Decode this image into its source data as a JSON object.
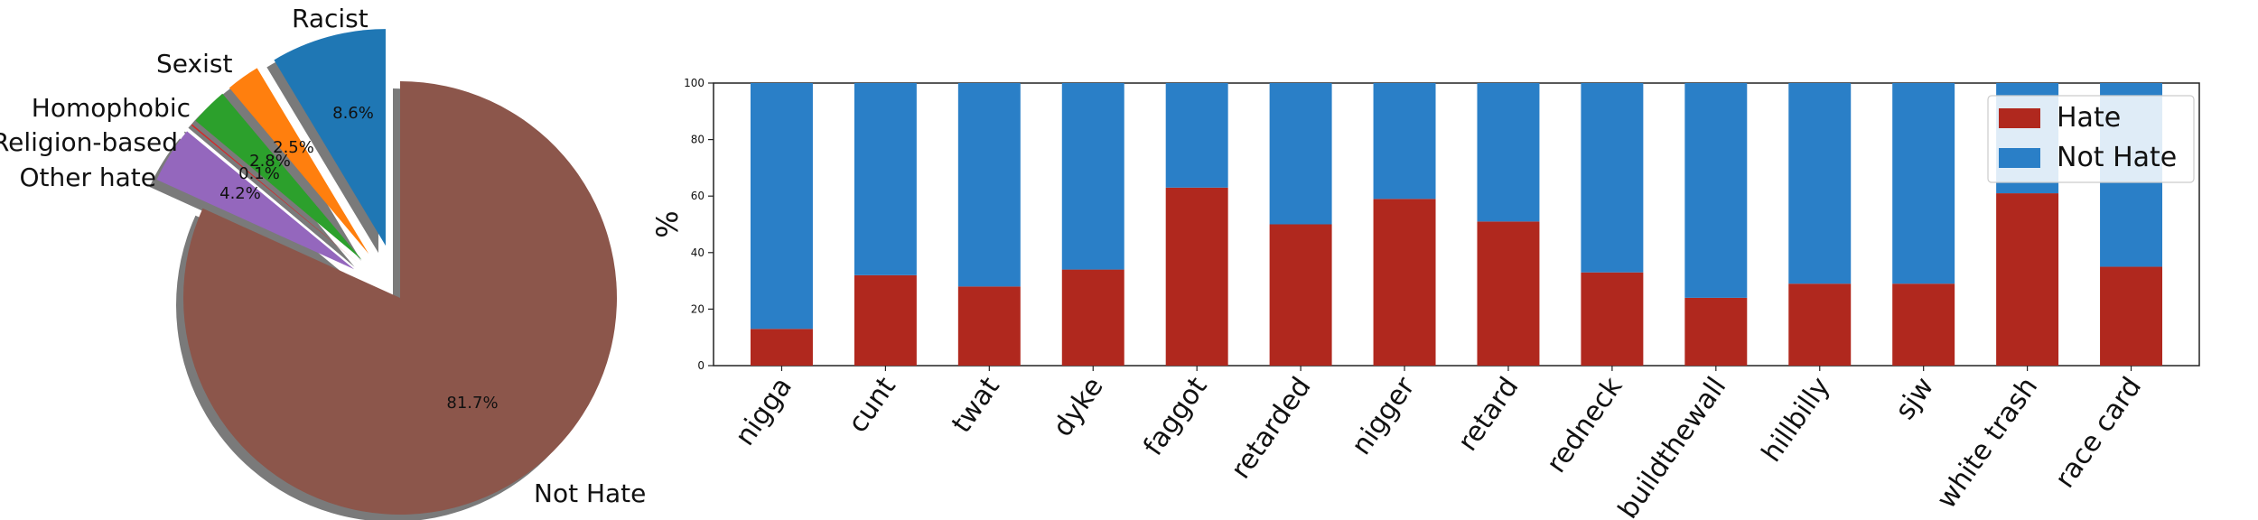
{
  "chart_data": [
    {
      "type": "pie",
      "slices": [
        {
          "label": "Racist",
          "value": 8.6,
          "pct_label": "8.6%",
          "color": "#1f77b4",
          "explode": true
        },
        {
          "label": "Sexist",
          "value": 2.5,
          "pct_label": "2.5%",
          "color": "#ff7f0e",
          "explode": true
        },
        {
          "label": "Homophobic",
          "value": 2.8,
          "pct_label": "2.8%",
          "color": "#2ca02c",
          "explode": true
        },
        {
          "label": "Religion-based",
          "value": 0.1,
          "pct_label": "0.1%",
          "color": "#d62728",
          "explode": true
        },
        {
          "label": "Other hate",
          "value": 4.2,
          "pct_label": "4.2%",
          "color": "#9467bd",
          "explode": true
        },
        {
          "label": "Not Hate",
          "value": 81.7,
          "pct_label": "81.7%",
          "color": "#8c564b",
          "explode": false
        }
      ],
      "shadow": true
    },
    {
      "type": "bar",
      "stacked": true,
      "categories": [
        "nigga",
        "cunt",
        "twat",
        "dyke",
        "faggot",
        "retarded",
        "nigger",
        "retard",
        "redneck",
        "buildthewall",
        "hillbilly",
        "sjw",
        "white trash",
        "race card"
      ],
      "series": [
        {
          "name": "Hate",
          "color": "#b0281e",
          "values": [
            13,
            32,
            28,
            34,
            63,
            50,
            59,
            51,
            33,
            24,
            29,
            29,
            61,
            35
          ]
        },
        {
          "name": "Not Hate",
          "color": "#2a7fc7",
          "values": [
            87,
            68,
            72,
            66,
            37,
            50,
            41,
            49,
            67,
            76,
            71,
            71,
            39,
            65
          ]
        }
      ],
      "ylabel": "%",
      "ylim": [
        0,
        100
      ],
      "yticks": [
        "0",
        "20",
        "40",
        "60",
        "80",
        "100"
      ],
      "legend_position": "top-right",
      "grid": false
    }
  ]
}
